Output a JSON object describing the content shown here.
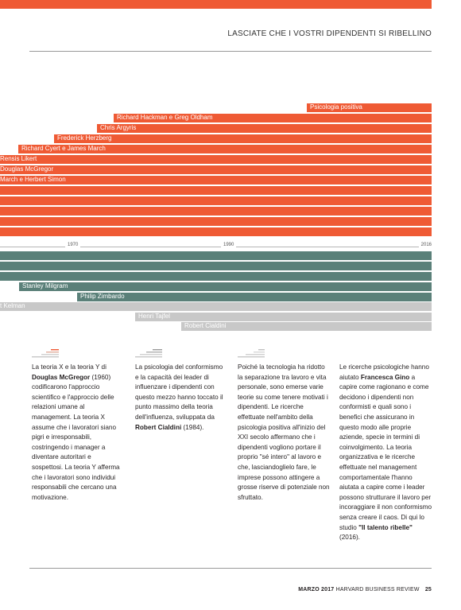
{
  "header": {
    "title": "LASCIATE CHE I VOSTRI DIPENDENTI SI RIBELLINO"
  },
  "timeline": {
    "orange_bars": [
      {
        "label": "Psicologia positiva"
      },
      {
        "label": "Richard Hackman e Greg Oldham"
      },
      {
        "label": "Chris Argyris"
      },
      {
        "label": "Frederick Herzberg"
      },
      {
        "label": "Richard Cyert e James March"
      },
      {
        "label": "Rensis Likert"
      },
      {
        "label": "Douglas McGregor"
      },
      {
        "label": "March e Herbert Simon"
      },
      {
        "label": ""
      },
      {
        "label": ""
      },
      {
        "label": ""
      },
      {
        "label": ""
      },
      {
        "label": ""
      },
      {
        "label": ""
      },
      {
        "label": ""
      }
    ],
    "axis_ticks": [
      "1970",
      "1990",
      "2016"
    ],
    "teal_bars": [
      {
        "label": ""
      },
      {
        "label": ""
      },
      {
        "label": ""
      },
      {
        "label": "Stanley Milgram"
      },
      {
        "label": "Philip Zimbardo"
      }
    ],
    "grey_bars": [
      {
        "label": "t Kelman"
      },
      {
        "label": "Henri Tajfel"
      },
      {
        "label": "Robert Cialdini"
      }
    ]
  },
  "columns": [
    {
      "parts": [
        {
          "t": "La teoria X e la teoria Y di ",
          "b": false
        },
        {
          "t": "Douglas McGregor",
          "b": true
        },
        {
          "t": " (1960) codificarono l'approccio scientifico e l'approccio delle relazioni umane al management. La teoria X assume che i lavoratori siano pigri e irresponsabili, costringendo i manager a diventare autoritari e sospettosi. La teoria Y afferma che i lavoratori sono individui responsabili che cercano una motivazione.",
          "b": false
        }
      ]
    },
    {
      "parts": [
        {
          "t": "La psicologia del conformismo e la capacità dei leader di influenzare i dipendenti con questo mezzo hanno toccato il punto massimo della teoria dell'influenza, sviluppata da ",
          "b": false
        },
        {
          "t": "Robert Cialdini",
          "b": true
        },
        {
          "t": " (1984).",
          "b": false
        }
      ]
    },
    {
      "parts": [
        {
          "t": "Poiché la tecnologia ha ridotto la separazione tra lavoro e vita personale, sono emerse varie teorie su come tenere motivati i dipendenti. Le ricerche effettuate nell'ambito della psicologia positiva all'inizio del XXI secolo affermano che i dipendenti vogliono portare il proprio \"sé intero\" al lavoro e che, lasciandoglielo fare, le imprese possono attingere a grosse riserve di potenziale non sfruttato.",
          "b": false
        }
      ]
    },
    {
      "parts": [
        {
          "t": "Le ricerche psicologiche hanno aiutato ",
          "b": false
        },
        {
          "t": "Francesca Gino",
          "b": true
        },
        {
          "t": " a capire come ragionano e come decidono i dipendenti non conformisti e quali sono i benefici che assicurano in questo modo alle proprie aziende, specie in termini di coinvolgimento. La teoria organizzativa e le ricerche effettuate nel management comportamentale l'hanno aiutata a capire come i leader possono strutturare il lavoro per incoraggiare il non conformismo senza creare il caos. Di qui lo studio ",
          "b": false
        },
        {
          "t": "\"Il talento ribelle\"",
          "b": true
        },
        {
          "t": " (2016).",
          "b": false
        }
      ]
    }
  ],
  "footer": {
    "issue": "MARZO 2017",
    "magazine": "HARVARD BUSINESS REVIEW",
    "page": "25"
  }
}
